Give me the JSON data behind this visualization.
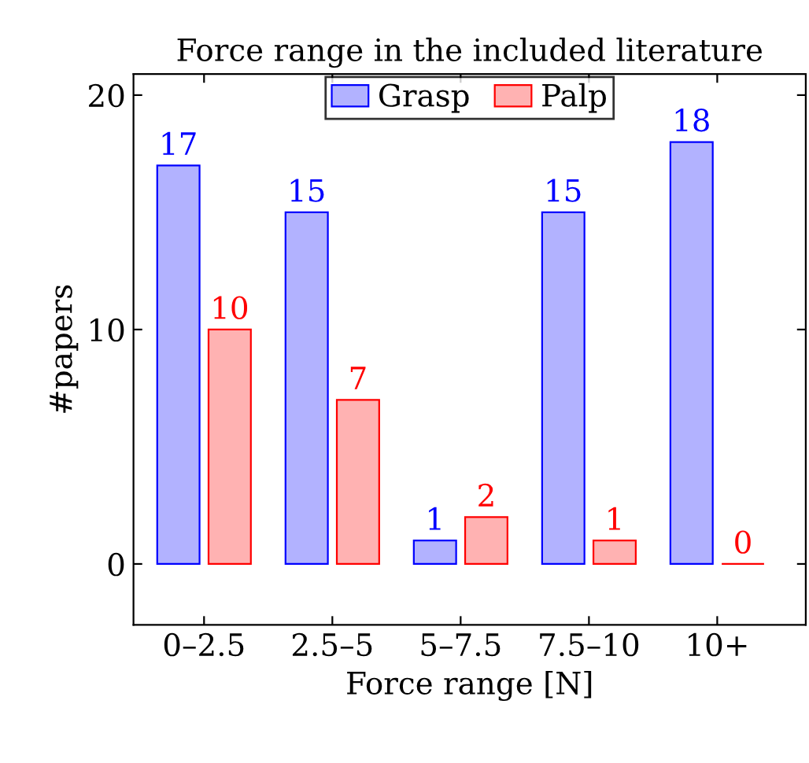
{
  "chart_data": {
    "type": "bar",
    "title": "Force range in the included literature",
    "xlabel": "Force range [N]",
    "ylabel": "#papers",
    "categories": [
      "0–2.5",
      "2.5–5",
      "5–7.5",
      "7.5–10",
      "10+"
    ],
    "series": [
      {
        "name": "Grasp",
        "color": "#0000ff",
        "values": [
          17,
          15,
          1,
          15,
          18
        ]
      },
      {
        "name": "Palp",
        "color": "#ff0000",
        "values": [
          10,
          7,
          2,
          1,
          0
        ]
      }
    ],
    "ylim": [
      -2.6,
      20.9
    ],
    "yticks": [
      0,
      10,
      20
    ],
    "grid": false,
    "legend": "top",
    "data_labels": true
  }
}
